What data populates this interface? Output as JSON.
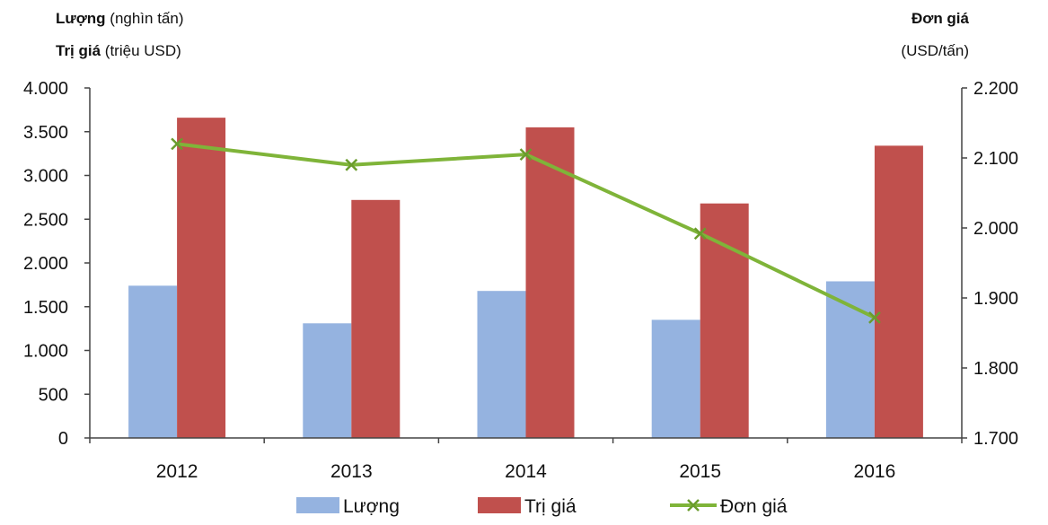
{
  "chart_data": {
    "type": "bar",
    "categories": [
      "2012",
      "2013",
      "2014",
      "2015",
      "2016"
    ],
    "left_axis": {
      "title_line1_bold": "Lượng",
      "title_line1_rest": " (nghìn tấn)",
      "title_line2_bold": "Trị giá",
      "title_line2_rest": " (triệu USD)",
      "range": [
        0,
        4000
      ],
      "ticks": [
        0,
        500,
        1000,
        1500,
        2000,
        2500,
        3000,
        3500,
        4000
      ],
      "tick_labels": [
        "0",
        "500",
        "1.000",
        "1.500",
        "2.000",
        "2.500",
        "3.000",
        "3.500",
        "4.000"
      ]
    },
    "right_axis": {
      "title_line1": "Đơn giá",
      "title_line2": "(USD/tấn)",
      "range": [
        1700,
        2200
      ],
      "ticks": [
        1700,
        1800,
        1900,
        2000,
        2100,
        2200
      ],
      "tick_labels": [
        "1.700",
        "1.800",
        "1.900",
        "2.000",
        "2.100",
        "2.200"
      ]
    },
    "series": [
      {
        "name": "Lượng",
        "type": "bar",
        "axis": "left",
        "color": "#95b3e0",
        "values": [
          1740,
          1310,
          1680,
          1350,
          1790
        ]
      },
      {
        "name": "Trị giá",
        "type": "bar",
        "axis": "left",
        "color": "#c0504d",
        "values": [
          3660,
          2720,
          3550,
          2680,
          3340
        ]
      },
      {
        "name": "Đơn giá",
        "type": "line",
        "axis": "right",
        "color": "#7fb439",
        "marker": "x",
        "values": [
          2120,
          2090,
          2105,
          1992,
          1872
        ]
      }
    ],
    "grid": false,
    "legend_position": "bottom"
  }
}
